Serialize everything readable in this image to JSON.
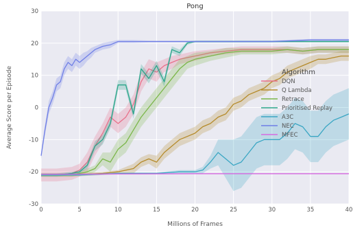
{
  "chart_data": {
    "type": "line",
    "title": "Pong",
    "xlabel": "Millions of Frames",
    "ylabel": "Average Score per Episode",
    "xlim": [
      0,
      40
    ],
    "ylim": [
      -30,
      30
    ],
    "xticks": [
      "0",
      "5",
      "10",
      "15",
      "20",
      "25",
      "30",
      "35",
      "40"
    ],
    "yticks": [
      "30",
      "20",
      "10",
      "0",
      "-10",
      "-20",
      "-30"
    ],
    "grid": true,
    "legend": {
      "title": "Algorithm",
      "position": "center-right"
    },
    "series": [
      {
        "name": "DQN",
        "color": "#e8708a",
        "x": [
          0,
          2,
          4,
          5,
          6,
          7,
          8,
          9,
          10,
          11,
          12,
          13,
          14,
          15,
          16,
          17,
          18,
          19,
          20,
          22,
          24,
          26,
          28,
          30,
          32,
          34,
          36,
          38,
          40
        ],
        "y": [
          -21,
          -21,
          -20.5,
          -19.5,
          -17,
          -12,
          -8,
          -3,
          -5,
          -3,
          1,
          8,
          12,
          11,
          13,
          14,
          15,
          15.5,
          16,
          17,
          17.5,
          18,
          18,
          18,
          18,
          17.5,
          18,
          18,
          18
        ],
        "band": [
          2,
          2,
          2,
          2,
          3,
          3,
          3,
          3,
          3,
          3,
          3,
          3,
          3,
          3,
          2,
          2,
          1.5,
          1.5,
          1.5,
          1,
          1,
          1,
          1,
          1,
          1,
          1,
          1,
          1,
          1
        ]
      },
      {
        "name": "Q Lambda",
        "color": "#b58a2a",
        "x": [
          0,
          4,
          8,
          10,
          12,
          13,
          14,
          15,
          16,
          17,
          18,
          19,
          20,
          21,
          22,
          23,
          24,
          25,
          26,
          27,
          28,
          29,
          30,
          31,
          32,
          33,
          34,
          35,
          36,
          37,
          38,
          39,
          40
        ],
        "y": [
          -21,
          -21,
          -20.5,
          -20,
          -19,
          -17,
          -16,
          -17,
          -14,
          -12,
          -10,
          -9,
          -8,
          -6,
          -5,
          -3,
          -2,
          1,
          2,
          4,
          5,
          6,
          8,
          9,
          11,
          12,
          13,
          14,
          15,
          15,
          15.5,
          16,
          16
        ],
        "band": [
          0.5,
          0.5,
          0.5,
          0.5,
          1.5,
          1.5,
          1.5,
          2,
          2,
          2,
          2,
          2,
          2,
          2,
          2,
          2,
          2,
          2,
          2,
          2,
          2,
          2,
          2,
          2,
          2,
          2,
          2,
          2,
          1.5,
          1.5,
          1.5,
          1.5,
          1.5
        ]
      },
      {
        "name": "Retrace",
        "color": "#7ab648",
        "x": [
          0,
          2,
          4,
          5,
          6,
          7,
          8,
          9,
          10,
          11,
          12,
          13,
          14,
          15,
          16,
          17,
          18,
          19,
          20,
          22,
          24,
          26,
          28,
          30,
          32,
          34,
          36,
          38,
          40
        ],
        "y": [
          -21,
          -21,
          -21,
          -20.5,
          -20,
          -19,
          -16,
          -17,
          -13,
          -11,
          -7,
          -3,
          0,
          3,
          6,
          9,
          12,
          14,
          15,
          16,
          17,
          17.5,
          17.5,
          17.5,
          18,
          17.5,
          18,
          18,
          18
        ],
        "band": [
          0.5,
          0.5,
          0.5,
          0.5,
          1,
          1,
          2,
          3,
          3,
          3,
          3,
          3,
          3,
          3,
          3,
          3,
          3,
          2,
          2,
          1.5,
          1.5,
          1,
          1,
          1,
          1,
          1,
          1,
          1,
          1
        ]
      },
      {
        "name": "Prioritised Replay",
        "color": "#2aa58a",
        "x": [
          0,
          2,
          4,
          5,
          6,
          7,
          8,
          9,
          10,
          11,
          12,
          13,
          14,
          15,
          16,
          17,
          18,
          19,
          20,
          21,
          22,
          24,
          26,
          28,
          30,
          32,
          34,
          36,
          38,
          40
        ],
        "y": [
          -21,
          -21,
          -20.5,
          -20,
          -18,
          -12,
          -10,
          -5,
          7,
          7,
          -2,
          12,
          9,
          13,
          8,
          18,
          17,
          20,
          20.5,
          20.5,
          20.5,
          20.5,
          20.5,
          20.5,
          20.5,
          20.5,
          20.5,
          20.5,
          20.5,
          20.5
        ],
        "band": [
          0.5,
          0.5,
          0.5,
          0.5,
          1,
          1.5,
          1.5,
          1.5,
          1.5,
          1.5,
          1.5,
          1.5,
          1.5,
          1.5,
          1.5,
          1,
          1,
          0.5,
          0.3,
          0.3,
          0.3,
          0.3,
          0.3,
          0.3,
          0.3,
          0.3,
          0.3,
          0.3,
          0.3,
          0.3
        ]
      },
      {
        "name": "A3C",
        "color": "#3aa6c3",
        "x": [
          0,
          5,
          10,
          15,
          18,
          20,
          21,
          22,
          23,
          24,
          25,
          26,
          27,
          28,
          29,
          30,
          31,
          32,
          33,
          34,
          35,
          36,
          37,
          38,
          39,
          40
        ],
        "y": [
          -21,
          -21,
          -20.5,
          -20.5,
          -20,
          -20,
          -19.5,
          -17,
          -14,
          -16,
          -18,
          -17,
          -14,
          -11,
          -10,
          -10,
          -10,
          -8,
          -5,
          -6,
          -9,
          -9,
          -6,
          -4,
          -3,
          -2
        ],
        "band": [
          0.3,
          0.3,
          0.3,
          0.3,
          0.5,
          0.5,
          1,
          2,
          4,
          6,
          8,
          8,
          8,
          8,
          8,
          8,
          8,
          8,
          8,
          8,
          8,
          8,
          8,
          8,
          8,
          8
        ]
      },
      {
        "name": "NEC",
        "color": "#6f7fe6",
        "x": [
          0,
          0.5,
          1,
          1.5,
          2,
          2.5,
          3,
          3.5,
          4,
          4.5,
          5,
          5.5,
          6,
          6.5,
          7,
          8,
          9,
          10,
          11,
          12,
          14,
          16,
          18,
          20,
          25,
          30,
          35,
          40
        ],
        "y": [
          -15,
          -7,
          0,
          3,
          7,
          8,
          12,
          14,
          13,
          15,
          14,
          15,
          16,
          17,
          18,
          19,
          19.5,
          20.5,
          20.5,
          20.5,
          20.5,
          20.5,
          20.5,
          20.5,
          20.5,
          20.5,
          21,
          21
        ],
        "band": [
          1,
          1.5,
          2,
          2,
          2,
          2,
          2,
          2,
          2,
          2,
          2,
          2,
          1.5,
          1.5,
          1,
          1,
          1,
          0.5,
          0.5,
          0.5,
          0.3,
          0.3,
          0.3,
          0.3,
          0.3,
          0.3,
          0.3,
          0.3
        ]
      },
      {
        "name": "MFEC",
        "color": "#d56ae0",
        "x": [
          0,
          10,
          20,
          30,
          40
        ],
        "y": [
          -20.8,
          -20.7,
          -20.6,
          -20.6,
          -20.6
        ],
        "band": [
          0.2,
          0.2,
          0.2,
          0.2,
          0.2
        ]
      }
    ]
  }
}
